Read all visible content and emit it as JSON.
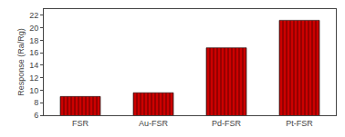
{
  "chart_data": {
    "type": "bar",
    "categories": [
      "FSR",
      "Au-FSR",
      "Pd-FSR",
      "Pt-FSR"
    ],
    "values": [
      9.0,
      9.6,
      16.8,
      21.2
    ],
    "color": "#cc0000",
    "ylabel": "Response (Ra/Rg)",
    "ylim": [
      6,
      23
    ],
    "yticks": [
      6,
      8,
      10,
      12,
      14,
      16,
      18,
      20,
      22
    ],
    "grid": false
  }
}
